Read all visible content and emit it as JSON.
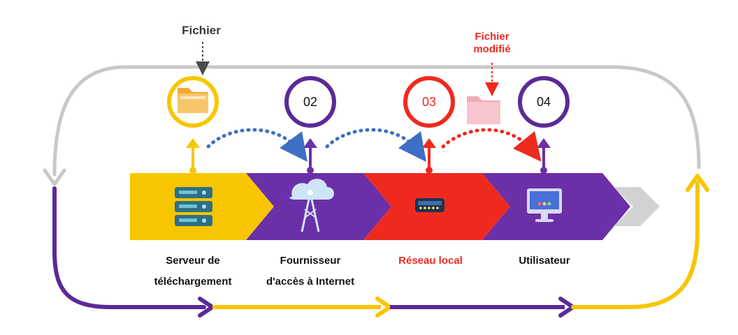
{
  "top_labels": {
    "fichier": "Fichier",
    "fichier_modifie_line1": "Fichier",
    "fichier_modifie_line2": "modifié"
  },
  "nodes": [
    {
      "id": "01",
      "number": "",
      "icon": "folder-icon",
      "ring_color": "#f7c600"
    },
    {
      "id": "02",
      "number": "02",
      "icon": "",
      "ring_color": "#5b2a96"
    },
    {
      "id": "03",
      "number": "03",
      "icon": "",
      "ring_color": "#ee2a1f"
    },
    {
      "id": "04",
      "number": "04",
      "icon": "",
      "ring_color": "#5b2a96"
    }
  ],
  "stages": [
    {
      "label_line1": "Serveur de",
      "label_line2": "téléchargement",
      "icon": "server-rack-icon",
      "color": "#f7c600"
    },
    {
      "label_line1": "Fournisseur",
      "label_line2": "d'accès à Internet",
      "icon": "cloud-tower-icon",
      "color": "#6b2fa8"
    },
    {
      "label_line1": "Réseau local",
      "label_line2": "",
      "icon": "router-icon",
      "color": "#ee2a1f"
    },
    {
      "label_line1": "Utilisateur",
      "label_line2": "",
      "icon": "monitor-icon",
      "color": "#6b2fa8"
    }
  ],
  "colors": {
    "yellow": "#f7c600",
    "purple": "#5b2a96",
    "red": "#ee2a1f",
    "gray": "#c8c8c8",
    "blue_dots": "#3d6fc4",
    "red_dots": "#ee2a1f",
    "folder": "#f8c66a",
    "pink_folder": "#f8c6cf"
  }
}
